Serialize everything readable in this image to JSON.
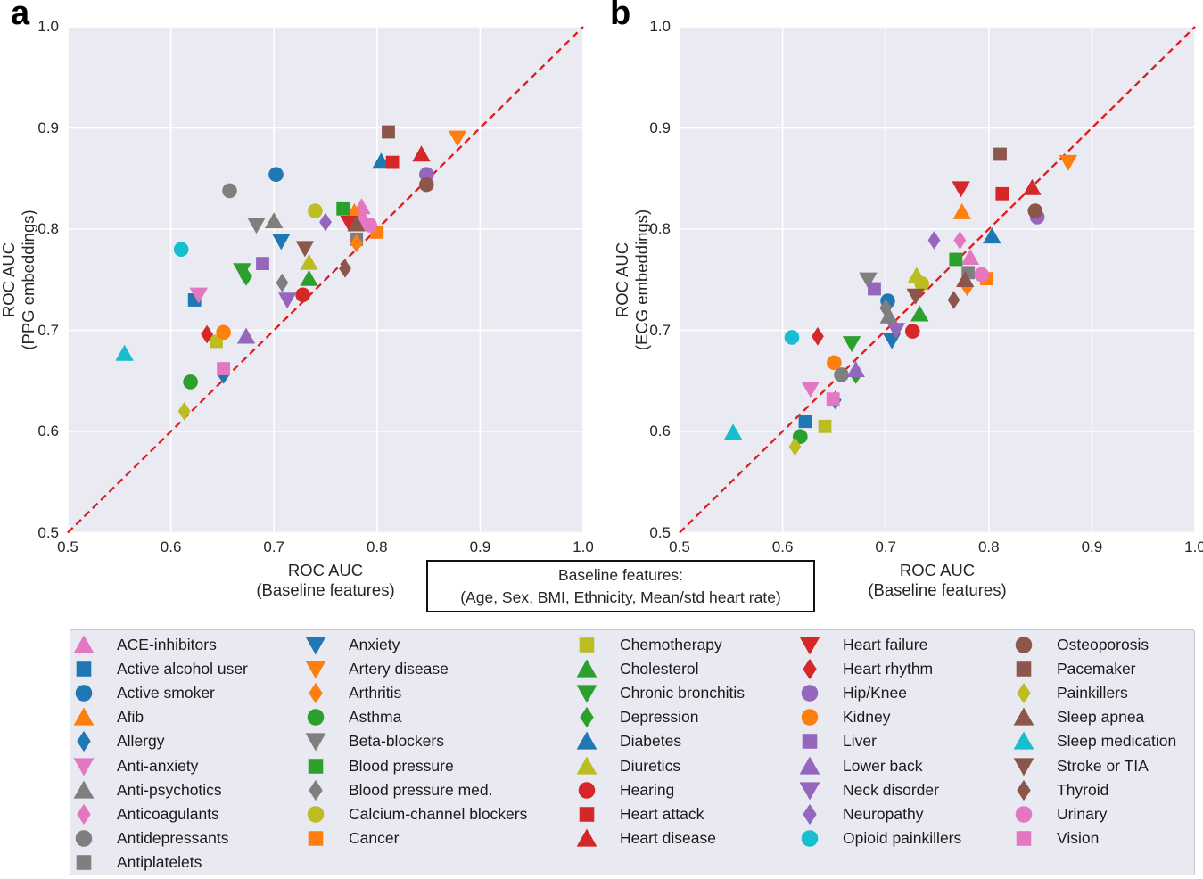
{
  "figure": {
    "panel_a_letter": "a",
    "panel_b_letter": "b",
    "baseline_box_line1": "Baseline features:",
    "baseline_box_line2": "(Age, Sex, BMI, Ethnicity, Mean/std heart rate)"
  },
  "colors": {
    "blue": "#1f77b4",
    "orange": "#ff7f0e",
    "green": "#2ca02c",
    "red": "#d62728",
    "purple": "#9467bd",
    "brown": "#8c564b",
    "pink": "#e377c2",
    "gray": "#7f7f7f",
    "olive": "#bcbd22",
    "cyan": "#17becf",
    "plot_bg": "#eaeaf2",
    "grid": "#ffffff",
    "diagonal": "#e21b1e",
    "legend_bg": "#e9e9f2",
    "legend_border": "#c3c3cf",
    "text": "#262626"
  },
  "legend": {
    "columns": [
      10,
      9,
      9,
      9,
      9
    ],
    "entries": [
      {
        "label": "ACE-inhibitors",
        "marker": "triangle-up",
        "color": "pink"
      },
      {
        "label": "Active alcohol user",
        "marker": "square",
        "color": "blue"
      },
      {
        "label": "Active smoker",
        "marker": "circle",
        "color": "blue"
      },
      {
        "label": "Afib",
        "marker": "triangle-up",
        "color": "orange"
      },
      {
        "label": "Allergy",
        "marker": "diamond",
        "color": "blue"
      },
      {
        "label": "Anti-anxiety",
        "marker": "triangle-down",
        "color": "pink"
      },
      {
        "label": "Anti-psychotics",
        "marker": "triangle-up",
        "color": "gray"
      },
      {
        "label": "Anticoagulants",
        "marker": "diamond",
        "color": "pink"
      },
      {
        "label": "Antidepressants",
        "marker": "circle",
        "color": "gray"
      },
      {
        "label": "Antiplatelets",
        "marker": "square",
        "color": "gray"
      },
      {
        "label": "Anxiety",
        "marker": "triangle-down",
        "color": "blue"
      },
      {
        "label": "Artery disease",
        "marker": "triangle-down",
        "color": "orange"
      },
      {
        "label": "Arthritis",
        "marker": "diamond",
        "color": "orange"
      },
      {
        "label": "Asthma",
        "marker": "circle",
        "color": "green"
      },
      {
        "label": "Beta-blockers",
        "marker": "triangle-down",
        "color": "gray"
      },
      {
        "label": "Blood pressure",
        "marker": "square",
        "color": "green"
      },
      {
        "label": "Blood pressure med.",
        "marker": "diamond",
        "color": "gray"
      },
      {
        "label": "Calcium-channel blockers",
        "marker": "circle",
        "color": "olive"
      },
      {
        "label": "Cancer",
        "marker": "square",
        "color": "orange"
      },
      {
        "label": "Chemotherapy",
        "marker": "square",
        "color": "olive"
      },
      {
        "label": "Cholesterol",
        "marker": "triangle-up",
        "color": "green"
      },
      {
        "label": "Chronic bronchitis",
        "marker": "triangle-down",
        "color": "green"
      },
      {
        "label": "Depression",
        "marker": "diamond",
        "color": "green"
      },
      {
        "label": "Diabetes",
        "marker": "triangle-up",
        "color": "blue"
      },
      {
        "label": "Diuretics",
        "marker": "triangle-up",
        "color": "olive"
      },
      {
        "label": "Hearing",
        "marker": "circle",
        "color": "red"
      },
      {
        "label": "Heart attack",
        "marker": "square",
        "color": "red"
      },
      {
        "label": "Heart disease",
        "marker": "triangle-up",
        "color": "red"
      },
      {
        "label": "Heart failure",
        "marker": "triangle-down",
        "color": "red"
      },
      {
        "label": "Heart rhythm",
        "marker": "diamond",
        "color": "red"
      },
      {
        "label": "Hip/Knee",
        "marker": "circle",
        "color": "purple"
      },
      {
        "label": "Kidney",
        "marker": "circle",
        "color": "orange"
      },
      {
        "label": "Liver",
        "marker": "square",
        "color": "purple"
      },
      {
        "label": "Lower back",
        "marker": "triangle-up",
        "color": "purple"
      },
      {
        "label": "Neck disorder",
        "marker": "triangle-down",
        "color": "purple"
      },
      {
        "label": "Neuropathy",
        "marker": "diamond",
        "color": "purple"
      },
      {
        "label": "Opioid painkillers",
        "marker": "circle",
        "color": "cyan"
      },
      {
        "label": "Osteoporosis",
        "marker": "circle",
        "color": "brown"
      },
      {
        "label": "Pacemaker",
        "marker": "square",
        "color": "brown"
      },
      {
        "label": "Painkillers",
        "marker": "diamond",
        "color": "olive"
      },
      {
        "label": "Sleep apnea",
        "marker": "triangle-up",
        "color": "brown"
      },
      {
        "label": "Sleep medication",
        "marker": "triangle-up",
        "color": "cyan"
      },
      {
        "label": "Stroke or TIA",
        "marker": "triangle-down",
        "color": "brown"
      },
      {
        "label": "Thyroid",
        "marker": "diamond",
        "color": "brown"
      },
      {
        "label": "Urinary",
        "marker": "circle",
        "color": "pink"
      },
      {
        "label": "Vision",
        "marker": "square",
        "color": "pink"
      }
    ]
  },
  "chart_data": [
    {
      "type": "scatter",
      "panel": "a",
      "xlabel_lines": [
        "ROC AUC",
        "(Baseline features)"
      ],
      "ylabel_lines": [
        "ROC AUC",
        "(PPG embeddings)"
      ],
      "xlim": [
        0.5,
        1.0
      ],
      "ylim": [
        0.5,
        1.0
      ],
      "xticks": [
        "0.5",
        "0.6",
        "0.7",
        "0.8",
        "0.9",
        "1.0"
      ],
      "yticks": [
        "1.0",
        "0.9",
        "0.8",
        "0.7",
        "0.6",
        "0.5"
      ],
      "grid": true,
      "diagonal": {
        "type": "identity-line",
        "style": "dashed",
        "color": "#e21b1e",
        "from": [
          0.5,
          0.5
        ],
        "to": [
          1.0,
          1.0
        ]
      },
      "points": [
        {
          "label": "ACE-inhibitors",
          "x": 0.785,
          "y": 0.822
        },
        {
          "label": "Active alcohol user",
          "x": 0.623,
          "y": 0.73
        },
        {
          "label": "Active smoker",
          "x": 0.702,
          "y": 0.854
        },
        {
          "label": "Afib",
          "x": 0.778,
          "y": 0.817
        },
        {
          "label": "Allergy",
          "x": 0.651,
          "y": 0.656
        },
        {
          "label": "Anti-anxiety",
          "x": 0.627,
          "y": 0.735
        },
        {
          "label": "Anti-psychotics",
          "x": 0.7,
          "y": 0.808
        },
        {
          "label": "Anticoagulants",
          "x": 0.786,
          "y": 0.81
        },
        {
          "label": "Antidepressants",
          "x": 0.657,
          "y": 0.838
        },
        {
          "label": "Antiplatelets",
          "x": 0.78,
          "y": 0.79
        },
        {
          "label": "Anxiety",
          "x": 0.707,
          "y": 0.788
        },
        {
          "label": "Artery disease",
          "x": 0.878,
          "y": 0.89
        },
        {
          "label": "Arthritis",
          "x": 0.78,
          "y": 0.786
        },
        {
          "label": "Asthma",
          "x": 0.619,
          "y": 0.649
        },
        {
          "label": "Beta-blockers",
          "x": 0.683,
          "y": 0.804
        },
        {
          "label": "Blood pressure",
          "x": 0.767,
          "y": 0.82
        },
        {
          "label": "Blood pressure med.",
          "x": 0.708,
          "y": 0.747
        },
        {
          "label": "Calcium-channel blockers",
          "x": 0.74,
          "y": 0.818
        },
        {
          "label": "Cancer",
          "x": 0.8,
          "y": 0.797
        },
        {
          "label": "Chemotherapy",
          "x": 0.644,
          "y": 0.689
        },
        {
          "label": "Cholesterol",
          "x": 0.734,
          "y": 0.751
        },
        {
          "label": "Chronic bronchitis",
          "x": 0.669,
          "y": 0.759
        },
        {
          "label": "Depression",
          "x": 0.673,
          "y": 0.753
        },
        {
          "label": "Diabetes",
          "x": 0.804,
          "y": 0.867
        },
        {
          "label": "Diuretics",
          "x": 0.734,
          "y": 0.767
        },
        {
          "label": "Hearing",
          "x": 0.728,
          "y": 0.735
        },
        {
          "label": "Heart attack",
          "x": 0.815,
          "y": 0.866
        },
        {
          "label": "Heart disease",
          "x": 0.843,
          "y": 0.874
        },
        {
          "label": "Heart failure",
          "x": 0.773,
          "y": 0.806
        },
        {
          "label": "Heart rhythm",
          "x": 0.635,
          "y": 0.696
        },
        {
          "label": "Hip/Knee",
          "x": 0.848,
          "y": 0.854
        },
        {
          "label": "Kidney",
          "x": 0.651,
          "y": 0.698
        },
        {
          "label": "Liver",
          "x": 0.689,
          "y": 0.766
        },
        {
          "label": "Lower back",
          "x": 0.673,
          "y": 0.694
        },
        {
          "label": "Neck disorder",
          "x": 0.713,
          "y": 0.73
        },
        {
          "label": "Neuropathy",
          "x": 0.75,
          "y": 0.807
        },
        {
          "label": "Opioid painkillers",
          "x": 0.61,
          "y": 0.78
        },
        {
          "label": "Osteoporosis",
          "x": 0.848,
          "y": 0.844
        },
        {
          "label": "Pacemaker",
          "x": 0.811,
          "y": 0.896
        },
        {
          "label": "Painkillers",
          "x": 0.613,
          "y": 0.62
        },
        {
          "label": "Sleep apnea",
          "x": 0.78,
          "y": 0.805
        },
        {
          "label": "Sleep medication",
          "x": 0.555,
          "y": 0.677
        },
        {
          "label": "Stroke or TIA",
          "x": 0.73,
          "y": 0.781
        },
        {
          "label": "Thyroid",
          "x": 0.769,
          "y": 0.761
        },
        {
          "label": "Urinary",
          "x": 0.793,
          "y": 0.804
        },
        {
          "label": "Vision",
          "x": 0.651,
          "y": 0.662
        }
      ]
    },
    {
      "type": "scatter",
      "panel": "b",
      "xlabel_lines": [
        "ROC AUC",
        "(Baseline features)"
      ],
      "ylabel_lines": [
        "ROC AUC",
        "(ECG embeddings)"
      ],
      "xlim": [
        0.5,
        1.0
      ],
      "ylim": [
        0.5,
        1.0
      ],
      "xticks": [
        "0.5",
        "0.6",
        "0.7",
        "0.8",
        "0.9",
        "1.0"
      ],
      "yticks": [
        "1.0",
        "0.9",
        "0.8",
        "0.7",
        "0.6",
        "0.5"
      ],
      "grid": true,
      "diagonal": {
        "type": "identity-line",
        "style": "dashed",
        "color": "#e21b1e",
        "from": [
          0.5,
          0.5
        ],
        "to": [
          1.0,
          1.0
        ]
      },
      "points": [
        {
          "label": "ACE-inhibitors",
          "x": 0.782,
          "y": 0.772
        },
        {
          "label": "Active alcohol user",
          "x": 0.622,
          "y": 0.61
        },
        {
          "label": "Active smoker",
          "x": 0.702,
          "y": 0.729
        },
        {
          "label": "Afib",
          "x": 0.774,
          "y": 0.817
        },
        {
          "label": "Allergy",
          "x": 0.651,
          "y": 0.631
        },
        {
          "label": "Anti-anxiety",
          "x": 0.627,
          "y": 0.642
        },
        {
          "label": "Anti-psychotics",
          "x": 0.703,
          "y": 0.714
        },
        {
          "label": "Anticoagulants",
          "x": 0.772,
          "y": 0.789
        },
        {
          "label": "Antidepressants",
          "x": 0.657,
          "y": 0.656
        },
        {
          "label": "Antiplatelets",
          "x": 0.78,
          "y": 0.757
        },
        {
          "label": "Anxiety",
          "x": 0.706,
          "y": 0.69
        },
        {
          "label": "Artery disease",
          "x": 0.877,
          "y": 0.866
        },
        {
          "label": "Arthritis",
          "x": 0.779,
          "y": 0.743
        },
        {
          "label": "Asthma",
          "x": 0.617,
          "y": 0.595
        },
        {
          "label": "Beta-blockers",
          "x": 0.683,
          "y": 0.75
        },
        {
          "label": "Blood pressure",
          "x": 0.768,
          "y": 0.77
        },
        {
          "label": "Blood pressure med.",
          "x": 0.7,
          "y": 0.722
        },
        {
          "label": "Calcium-channel blockers",
          "x": 0.735,
          "y": 0.746
        },
        {
          "label": "Cancer",
          "x": 0.798,
          "y": 0.751
        },
        {
          "label": "Chemotherapy",
          "x": 0.641,
          "y": 0.605
        },
        {
          "label": "Cholesterol",
          "x": 0.733,
          "y": 0.716
        },
        {
          "label": "Chronic bronchitis",
          "x": 0.667,
          "y": 0.687
        },
        {
          "label": "Depression",
          "x": 0.671,
          "y": 0.656
        },
        {
          "label": "Diabetes",
          "x": 0.803,
          "y": 0.793
        },
        {
          "label": "Diuretics",
          "x": 0.73,
          "y": 0.754
        },
        {
          "label": "Hearing",
          "x": 0.726,
          "y": 0.699
        },
        {
          "label": "Heart attack",
          "x": 0.813,
          "y": 0.835
        },
        {
          "label": "Heart disease",
          "x": 0.842,
          "y": 0.841
        },
        {
          "label": "Heart failure",
          "x": 0.773,
          "y": 0.84
        },
        {
          "label": "Heart rhythm",
          "x": 0.634,
          "y": 0.694
        },
        {
          "label": "Hip/Knee",
          "x": 0.847,
          "y": 0.812
        },
        {
          "label": "Kidney",
          "x": 0.65,
          "y": 0.668
        },
        {
          "label": "Liver",
          "x": 0.689,
          "y": 0.741
        },
        {
          "label": "Lower back",
          "x": 0.671,
          "y": 0.661
        },
        {
          "label": "Neck disorder",
          "x": 0.71,
          "y": 0.7
        },
        {
          "label": "Neuropathy",
          "x": 0.747,
          "y": 0.789
        },
        {
          "label": "Opioid painkillers",
          "x": 0.609,
          "y": 0.693
        },
        {
          "label": "Osteoporosis",
          "x": 0.845,
          "y": 0.818
        },
        {
          "label": "Pacemaker",
          "x": 0.811,
          "y": 0.874
        },
        {
          "label": "Painkillers",
          "x": 0.612,
          "y": 0.585
        },
        {
          "label": "Sleep apnea",
          "x": 0.777,
          "y": 0.75
        },
        {
          "label": "Sleep medication",
          "x": 0.552,
          "y": 0.599
        },
        {
          "label": "Stroke or TIA",
          "x": 0.729,
          "y": 0.734
        },
        {
          "label": "Thyroid",
          "x": 0.766,
          "y": 0.73
        },
        {
          "label": "Urinary",
          "x": 0.793,
          "y": 0.755
        },
        {
          "label": "Vision",
          "x": 0.649,
          "y": 0.632
        }
      ]
    }
  ]
}
